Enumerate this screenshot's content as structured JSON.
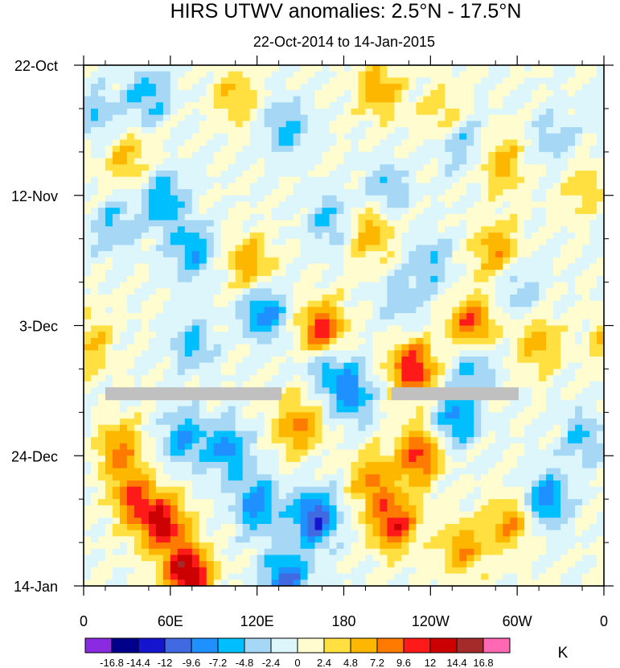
{
  "chart_data": {
    "type": "heatmap",
    "title": "HIRS UTWV anomalies: 2.5°N - 17.5°N",
    "subtitle": "22-Oct-2014 to 14-Jan-2015",
    "xlabel": "",
    "ylabel": "",
    "x_range_deg_east": [
      0,
      360
    ],
    "x_ticks": [
      {
        "lon": 0,
        "label": "0"
      },
      {
        "lon": 60,
        "label": "60E"
      },
      {
        "lon": 120,
        "label": "120E"
      },
      {
        "lon": 180,
        "label": "180"
      },
      {
        "lon": 240,
        "label": "120W"
      },
      {
        "lon": 300,
        "label": "60W"
      },
      {
        "lon": 360,
        "label": "0"
      }
    ],
    "y_range_days_since_start": [
      0,
      84
    ],
    "y_ticks": [
      {
        "day": 0,
        "label": "22-Oct"
      },
      {
        "day": 21,
        "label": "12-Nov"
      },
      {
        "day": 42,
        "label": "3-Dec"
      },
      {
        "day": 63,
        "label": "24-Dec"
      },
      {
        "day": 84,
        "label": "14-Jan"
      }
    ],
    "missing_data_segments": [
      {
        "day": 53,
        "lon_start": 15,
        "lon_end": 137
      },
      {
        "day": 53,
        "lon_start": 213,
        "lon_end": 301
      }
    ],
    "colorbar": {
      "unit": "K",
      "levels": [
        "-16.8",
        "-14.4",
        "-12",
        "-9.6",
        "-7.2",
        "-4.8",
        "-2.4",
        "0",
        "2.4",
        "4.8",
        "7.2",
        "9.6",
        "12",
        "14.4",
        "16.8"
      ],
      "colors": [
        "#8a2be2",
        "#00008b",
        "#1515d0",
        "#4169e1",
        "#1e90ff",
        "#00bfff",
        "#a6d8f5",
        "#dcf6fc",
        "#fffccf",
        "#ffe040",
        "#fdb700",
        "#ff7a00",
        "#ff1a1a",
        "#cc0000",
        "#a52a2a",
        "#ff69b4"
      ]
    },
    "anomaly_features": [
      {
        "lon": 72,
        "day": 82,
        "value": 15.5
      },
      {
        "lon": 55,
        "day": 74,
        "value": 12.5
      },
      {
        "lon": 25,
        "day": 62,
        "value": 8
      },
      {
        "lon": 35,
        "day": 70,
        "value": 9
      },
      {
        "lon": 165,
        "day": 43,
        "value": 12.5
      },
      {
        "lon": 228,
        "day": 49,
        "value": 12
      },
      {
        "lon": 268,
        "day": 42,
        "value": 11
      },
      {
        "lon": 232,
        "day": 63,
        "value": 10.5
      },
      {
        "lon": 215,
        "day": 74,
        "value": 11.5
      },
      {
        "lon": 148,
        "day": 58,
        "value": 8
      },
      {
        "lon": 200,
        "day": 67,
        "value": 7.5
      },
      {
        "lon": 295,
        "day": 74,
        "value": 7
      },
      {
        "lon": 262,
        "day": 78,
        "value": 7
      },
      {
        "lon": 115,
        "day": 32,
        "value": 7
      },
      {
        "lon": 200,
        "day": 27,
        "value": 6.5
      },
      {
        "lon": 285,
        "day": 30,
        "value": 7.5
      },
      {
        "lon": 290,
        "day": 16,
        "value": 6
      },
      {
        "lon": 315,
        "day": 45,
        "value": 6
      },
      {
        "lon": 105,
        "day": 5,
        "value": 5
      },
      {
        "lon": 205,
        "day": 4,
        "value": 6.5
      },
      {
        "lon": 30,
        "day": 15,
        "value": 5
      },
      {
        "lon": 5,
        "day": 45,
        "value": 5
      },
      {
        "lon": 250,
        "day": 8,
        "value": 5
      },
      {
        "lon": 345,
        "day": 20,
        "value": 4
      },
      {
        "lon": 45,
        "day": 5,
        "value": -6
      },
      {
        "lon": 55,
        "day": 22,
        "value": -7
      },
      {
        "lon": 75,
        "day": 30,
        "value": -7
      },
      {
        "lon": 20,
        "day": 26,
        "value": -5
      },
      {
        "lon": 75,
        "day": 45,
        "value": -5.5
      },
      {
        "lon": 70,
        "day": 60,
        "value": -7
      },
      {
        "lon": 100,
        "day": 62,
        "value": -8
      },
      {
        "lon": 120,
        "day": 71,
        "value": -8.5
      },
      {
        "lon": 140,
        "day": 83,
        "value": -10.5
      },
      {
        "lon": 160,
        "day": 73,
        "value": -12
      },
      {
        "lon": 125,
        "day": 40,
        "value": -8.5
      },
      {
        "lon": 168,
        "day": 48,
        "value": -7
      },
      {
        "lon": 185,
        "day": 53,
        "value": -8
      },
      {
        "lon": 258,
        "day": 57,
        "value": -8
      },
      {
        "lon": 270,
        "day": 48,
        "value": -6
      },
      {
        "lon": 320,
        "day": 70,
        "value": -8.5
      },
      {
        "lon": 345,
        "day": 60,
        "value": -5
      },
      {
        "lon": 140,
        "day": 10,
        "value": -6
      },
      {
        "lon": 260,
        "day": 12,
        "value": -5.5
      },
      {
        "lon": 210,
        "day": 20,
        "value": -5
      },
      {
        "lon": 240,
        "day": 32,
        "value": -5
      },
      {
        "lon": 170,
        "day": 25,
        "value": -5
      },
      {
        "lon": 10,
        "day": 8,
        "value": -4.5
      },
      {
        "lon": 325,
        "day": 12,
        "value": -4
      },
      {
        "lon": 300,
        "day": 36,
        "value": -4.5
      },
      {
        "lon": 220,
        "day": 38,
        "value": -4
      }
    ]
  }
}
